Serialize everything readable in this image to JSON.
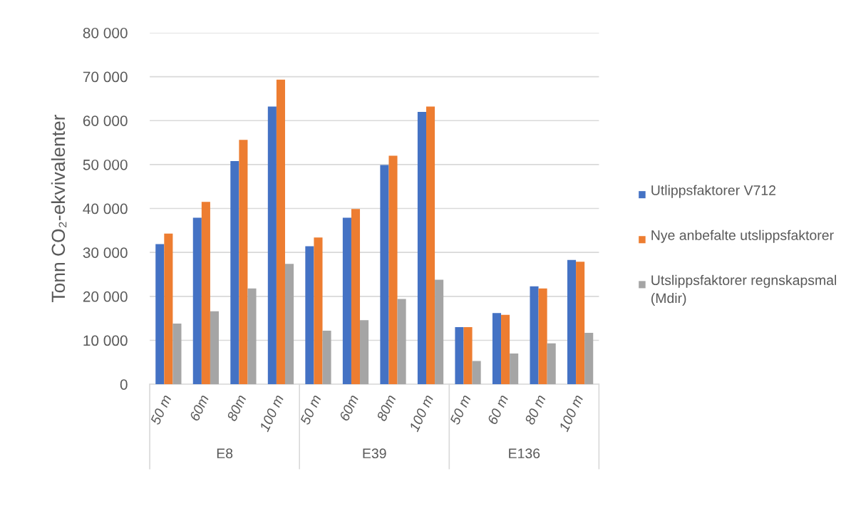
{
  "chart_data": {
    "type": "bar",
    "ylabel": "Tonn CO₂-ekvivalenter",
    "categories": [
      "50 m",
      "60m",
      "80m",
      "100 m",
      "50 m",
      "60m",
      "80m",
      "100 m",
      "50 m",
      "60 m",
      "80 m",
      "100 m"
    ],
    "annotations": [
      "E8",
      "E39",
      "E136"
    ],
    "series": [
      {
        "name": "Utlippsfaktorer V712",
        "color": "#4472c4",
        "values": [
          31900,
          37900,
          50800,
          63200,
          31400,
          37900,
          49900,
          62000,
          13000,
          16200,
          22300,
          28300
        ]
      },
      {
        "name": "Nye anbefalte utslippsfaktorer",
        "color": "#ed7d31",
        "values": [
          34300,
          41500,
          55600,
          69300,
          33400,
          39900,
          52000,
          63200,
          13000,
          15800,
          21800,
          27900
        ]
      },
      {
        "name": "Utslippsfaktorer regnskapsmal (Mdir)",
        "color": "#a5a5a5",
        "values": [
          13800,
          16600,
          21800,
          27400,
          12200,
          14600,
          19400,
          23800,
          5300,
          7000,
          9300,
          11700
        ]
      }
    ],
    "ylim": [
      0,
      80000
    ],
    "yticks": [
      0,
      {
        "value": 10000,
        "label": "10 000"
      },
      {
        "value": 20000,
        "label": "20 000"
      },
      {
        "value": 30000,
        "label": "30 000"
      },
      {
        "value": 40000,
        "label": "40 000"
      },
      {
        "value": 50000,
        "label": "50 000"
      },
      {
        "value": 60000,
        "label": "60 000"
      },
      {
        "value": 70000,
        "label": "70 000"
      },
      {
        "value": 80000,
        "label": "80 000"
      }
    ],
    "grid": "y",
    "legend": "right"
  }
}
